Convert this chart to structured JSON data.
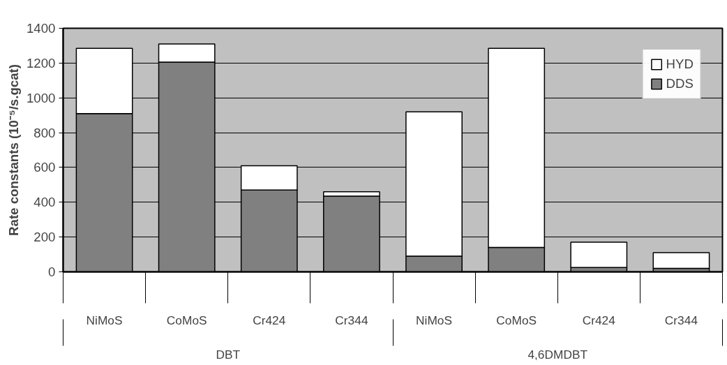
{
  "chart_data": {
    "type": "bar",
    "stacked": true,
    "ylabel": "Rate constants (10⁻⁵/s.gcat)",
    "categories": [
      "NiMoS",
      "CoMoS",
      "Cr424",
      "Cr344",
      "NiMoS",
      "CoMoS",
      "Cr424",
      "Cr344"
    ],
    "annotations": [
      "DBT",
      "4,6DMDBT"
    ],
    "series": [
      {
        "name": "DDS",
        "color": "#808080",
        "values": [
          910,
          1205,
          470,
          435,
          90,
          140,
          25,
          20
        ]
      },
      {
        "name": "HYD",
        "color": "#ffffff",
        "values": [
          375,
          105,
          140,
          25,
          830,
          1145,
          145,
          90
        ]
      }
    ],
    "ylim": [
      0,
      1400
    ],
    "yticks": [
      0,
      200,
      400,
      600,
      800,
      1000,
      1200,
      1400
    ],
    "grid": "y",
    "legend": "top right"
  }
}
